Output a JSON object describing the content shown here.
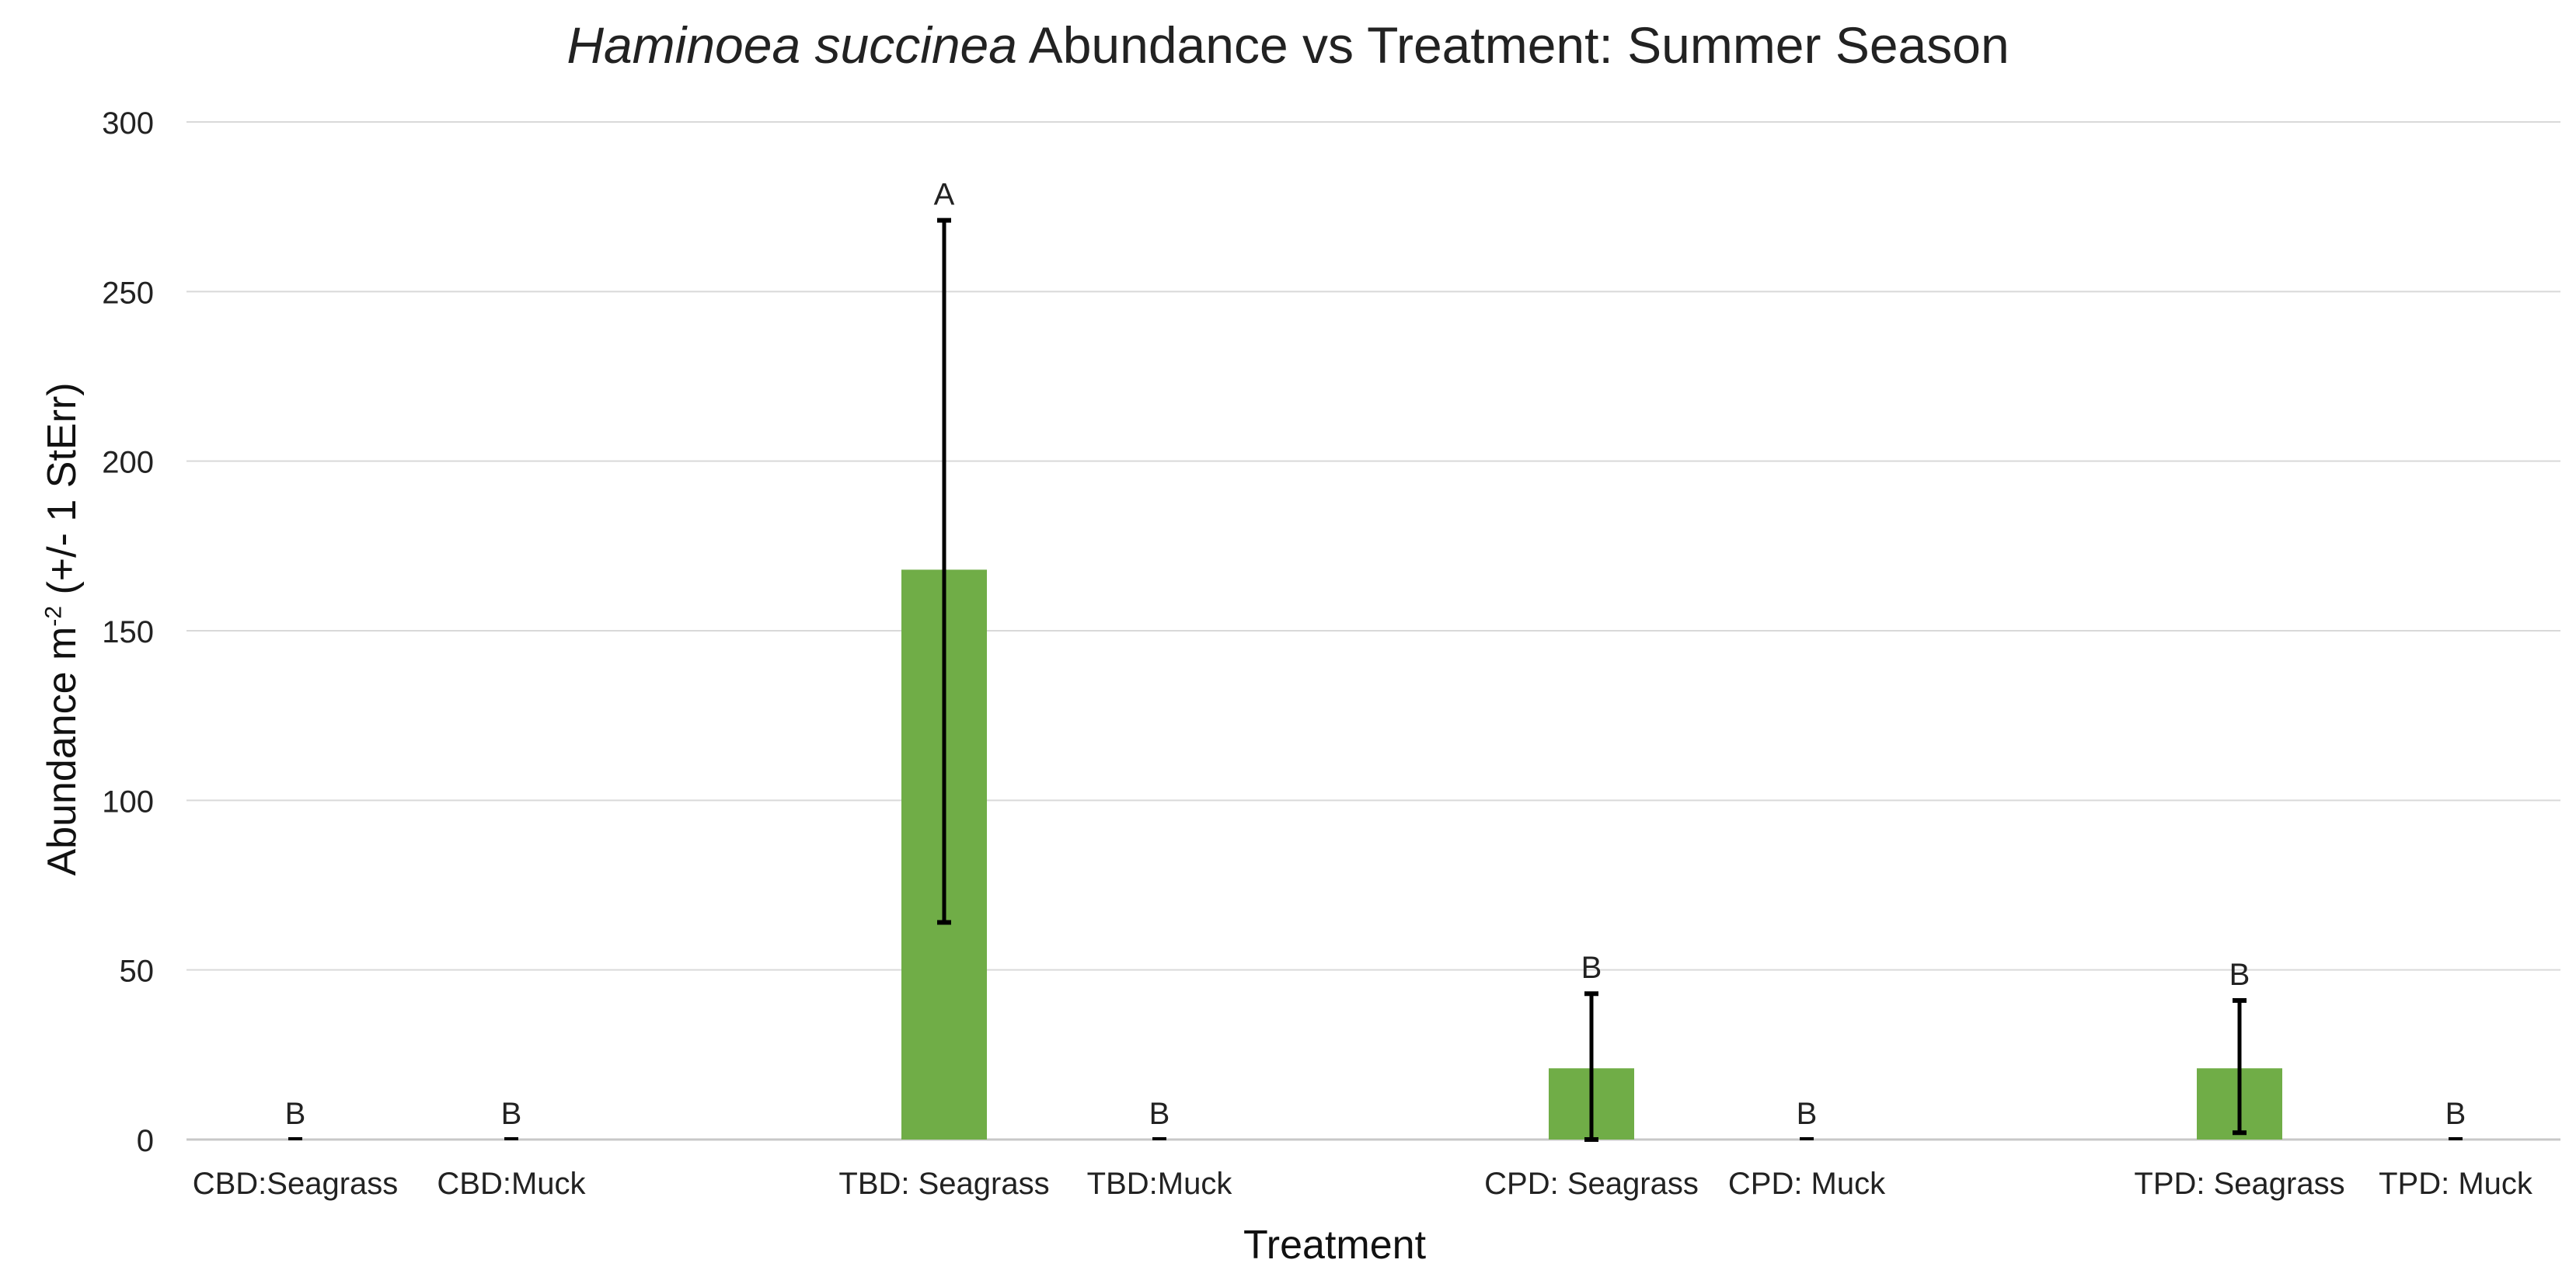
{
  "chart_data": {
    "type": "bar",
    "title_italic": "Haminoea succinea",
    "title_rest": " Abundance vs Treatment: Summer Season",
    "ylabel_main": "Abundance m",
    "ylabel_sup": "-2",
    "ylabel_tail": " (+/- 1 StErr)",
    "xlabel": "Treatment",
    "ylim": [
      0,
      300
    ],
    "yticks": [
      0,
      50,
      100,
      150,
      200,
      250,
      300
    ],
    "grid": true,
    "bar_color": "#70ad47",
    "categories": [
      "CBD:Seagrass",
      "CBD:Muck",
      "TBD: Seagrass",
      "TBD:Muck",
      "CPD: Seagrass",
      "CPD: Muck",
      "TPD: Seagrass",
      "TPD: Muck"
    ],
    "values": [
      0,
      0,
      168,
      0,
      21,
      0,
      21,
      0
    ],
    "error_low": [
      0,
      0,
      64,
      0,
      0,
      0,
      2,
      0
    ],
    "error_high": [
      0,
      0,
      271,
      0,
      43,
      0,
      41,
      0
    ],
    "significance_letters": [
      "B",
      "B",
      "A",
      "B",
      "B",
      "B",
      "B",
      "B"
    ]
  }
}
